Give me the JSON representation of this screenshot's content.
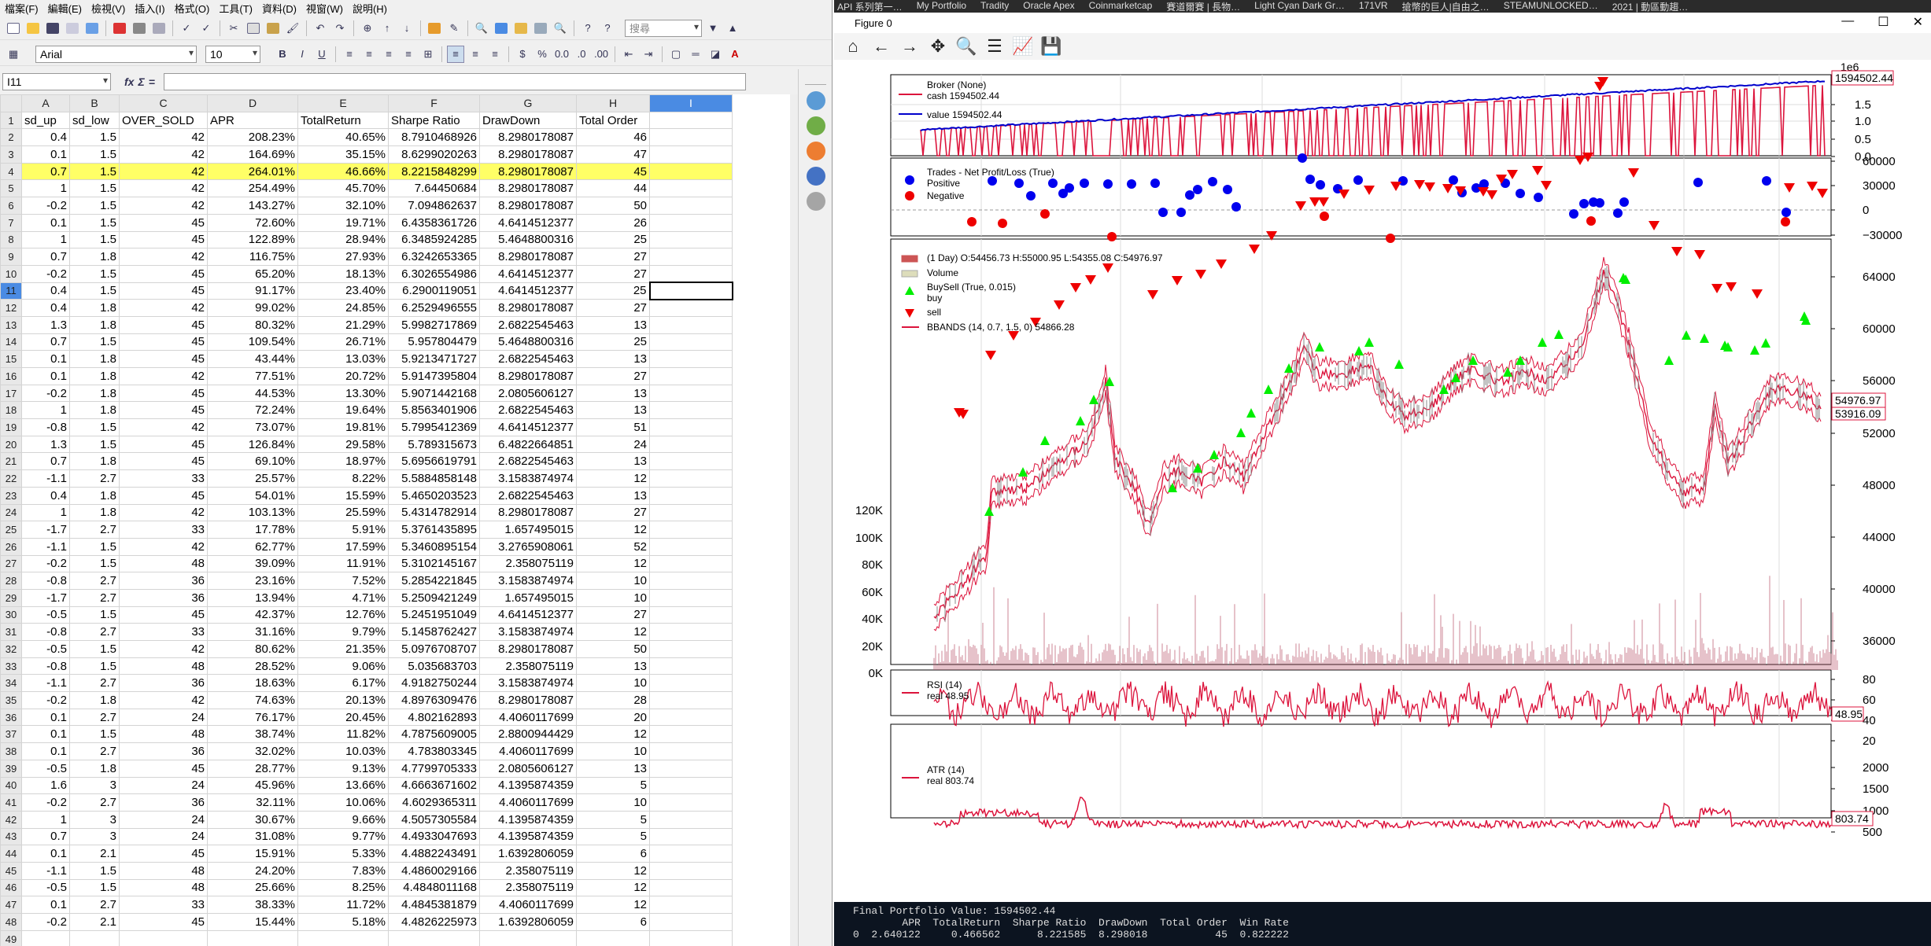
{
  "taskbar": {
    "items": [
      "API 系列第一…",
      "My Portfolio",
      "Tradity",
      "Oracle Apex",
      "Coinmarketcap",
      "賽道爾賽 | 長物…",
      "Light Cyan Dark Gr…",
      "171VR",
      "搶幣的巨人|自由之…",
      "STEAMUNLOCKED…",
      "2021 | 動區動趨…"
    ]
  },
  "spreadsheet": {
    "menu": [
      "檔案(F)",
      "編輯(E)",
      "檢視(V)",
      "插入(I)",
      "格式(O)",
      "工具(T)",
      "資料(D)",
      "視窗(W)",
      "說明(H)"
    ],
    "font_name": "Arial",
    "font_size": "10",
    "search_placeholder": "搜尋",
    "name_box": "I11",
    "formula_value": "",
    "bold": "B",
    "italic": "I",
    "underline": "U",
    "fx": "fx",
    "sigma": "Σ",
    "equals": "=",
    "columns": [
      "",
      "A",
      "B",
      "C",
      "D",
      "E",
      "F",
      "G",
      "H",
      "I"
    ],
    "header_row": [
      "sd_up",
      "sd_low",
      "OVER_SOLD",
      "APR",
      "TotalReturn",
      "Sharpe Ratio",
      "DrawDown",
      "Total Order"
    ],
    "rows": [
      [
        "0.4",
        "1.5",
        "42",
        "208.23%",
        "40.65%",
        "8.7910468926",
        "8.2980178087",
        "46"
      ],
      [
        "0.1",
        "1.5",
        "42",
        "164.69%",
        "35.15%",
        "8.6299020263",
        "8.2980178087",
        "47"
      ],
      [
        "0.7",
        "1.5",
        "42",
        "264.01%",
        "46.66%",
        "8.2215848299",
        "8.2980178087",
        "45"
      ],
      [
        "1",
        "1.5",
        "42",
        "254.49%",
        "45.70%",
        "7.64450684",
        "8.2980178087",
        "44"
      ],
      [
        "-0.2",
        "1.5",
        "42",
        "143.27%",
        "32.10%",
        "7.094862637",
        "8.2980178087",
        "50"
      ],
      [
        "0.1",
        "1.5",
        "45",
        "72.60%",
        "19.71%",
        "6.4358361726",
        "4.6414512377",
        "26"
      ],
      [
        "1",
        "1.5",
        "45",
        "122.89%",
        "28.94%",
        "6.3485924285",
        "5.4648800316",
        "25"
      ],
      [
        "0.7",
        "1.8",
        "42",
        "116.75%",
        "27.93%",
        "6.3242653365",
        "8.2980178087",
        "27"
      ],
      [
        "-0.2",
        "1.5",
        "45",
        "65.20%",
        "18.13%",
        "6.3026554986",
        "4.6414512377",
        "27"
      ],
      [
        "0.4",
        "1.5",
        "45",
        "91.17%",
        "23.40%",
        "6.2900119051",
        "4.6414512377",
        "25"
      ],
      [
        "0.4",
        "1.8",
        "42",
        "99.02%",
        "24.85%",
        "6.2529496555",
        "8.2980178087",
        "27"
      ],
      [
        "1.3",
        "1.8",
        "45",
        "80.32%",
        "21.29%",
        "5.9982717869",
        "2.6822545463",
        "13"
      ],
      [
        "0.7",
        "1.5",
        "45",
        "109.54%",
        "26.71%",
        "5.957804479",
        "5.4648800316",
        "25"
      ],
      [
        "0.1",
        "1.8",
        "45",
        "43.44%",
        "13.03%",
        "5.9213471727",
        "2.6822545463",
        "13"
      ],
      [
        "0.1",
        "1.8",
        "42",
        "77.51%",
        "20.72%",
        "5.9147395804",
        "8.2980178087",
        "27"
      ],
      [
        "-0.2",
        "1.8",
        "45",
        "44.53%",
        "13.30%",
        "5.9071442168",
        "2.0805606127",
        "13"
      ],
      [
        "1",
        "1.8",
        "45",
        "72.24%",
        "19.64%",
        "5.8563401906",
        "2.6822545463",
        "13"
      ],
      [
        "-0.8",
        "1.5",
        "42",
        "73.07%",
        "19.81%",
        "5.7995412369",
        "4.6414512377",
        "51"
      ],
      [
        "1.3",
        "1.5",
        "45",
        "126.84%",
        "29.58%",
        "5.789315673",
        "6.4822664851",
        "24"
      ],
      [
        "0.7",
        "1.8",
        "45",
        "69.10%",
        "18.97%",
        "5.6956619791",
        "2.6822545463",
        "13"
      ],
      [
        "-1.1",
        "2.7",
        "33",
        "25.57%",
        "8.22%",
        "5.5884858148",
        "3.1583874974",
        "12"
      ],
      [
        "0.4",
        "1.8",
        "45",
        "54.01%",
        "15.59%",
        "5.4650203523",
        "2.6822545463",
        "13"
      ],
      [
        "1",
        "1.8",
        "42",
        "103.13%",
        "25.59%",
        "5.4314782914",
        "8.2980178087",
        "27"
      ],
      [
        "-1.7",
        "2.7",
        "33",
        "17.78%",
        "5.91%",
        "5.3761435895",
        "1.657495015",
        "12"
      ],
      [
        "-1.1",
        "1.5",
        "42",
        "62.77%",
        "17.59%",
        "5.3460895154",
        "3.2765908061",
        "52"
      ],
      [
        "-0.2",
        "1.5",
        "48",
        "39.09%",
        "11.91%",
        "5.3102145167",
        "2.358075119",
        "12"
      ],
      [
        "-0.8",
        "2.7",
        "36",
        "23.16%",
        "7.52%",
        "5.2854221845",
        "3.1583874974",
        "10"
      ],
      [
        "-1.7",
        "2.7",
        "36",
        "13.94%",
        "4.71%",
        "5.2509421249",
        "1.657495015",
        "10"
      ],
      [
        "-0.5",
        "1.5",
        "45",
        "42.37%",
        "12.76%",
        "5.2451951049",
        "4.6414512377",
        "27"
      ],
      [
        "-0.8",
        "2.7",
        "33",
        "31.16%",
        "9.79%",
        "5.1458762427",
        "3.1583874974",
        "12"
      ],
      [
        "-0.5",
        "1.5",
        "42",
        "80.62%",
        "21.35%",
        "5.0976708707",
        "8.2980178087",
        "50"
      ],
      [
        "-0.8",
        "1.5",
        "48",
        "28.52%",
        "9.06%",
        "5.035683703",
        "2.358075119",
        "13"
      ],
      [
        "-1.1",
        "2.7",
        "36",
        "18.63%",
        "6.17%",
        "4.9182750244",
        "3.1583874974",
        "10"
      ],
      [
        "-0.2",
        "1.8",
        "42",
        "74.63%",
        "20.13%",
        "4.8976309476",
        "8.2980178087",
        "28"
      ],
      [
        "0.1",
        "2.7",
        "24",
        "76.17%",
        "20.45%",
        "4.802162893",
        "4.4060117699",
        "20"
      ],
      [
        "0.1",
        "1.5",
        "48",
        "38.74%",
        "11.82%",
        "4.7875609005",
        "2.8800944429",
        "12"
      ],
      [
        "0.1",
        "2.7",
        "36",
        "32.02%",
        "10.03%",
        "4.783803345",
        "4.4060117699",
        "10"
      ],
      [
        "-0.5",
        "1.8",
        "45",
        "28.77%",
        "9.13%",
        "4.7799705333",
        "2.0805606127",
        "13"
      ],
      [
        "1.6",
        "3",
        "24",
        "45.96%",
        "13.66%",
        "4.6663671602",
        "4.1395874359",
        "5"
      ],
      [
        "-0.2",
        "2.7",
        "36",
        "32.11%",
        "10.06%",
        "4.6029365311",
        "4.4060117699",
        "10"
      ],
      [
        "1",
        "3",
        "24",
        "30.67%",
        "9.66%",
        "4.5057305584",
        "4.1395874359",
        "5"
      ],
      [
        "0.7",
        "3",
        "24",
        "31.08%",
        "9.77%",
        "4.4933047693",
        "4.1395874359",
        "5"
      ],
      [
        "0.1",
        "2.1",
        "45",
        "15.91%",
        "5.33%",
        "4.4882243491",
        "1.6392806059",
        "6"
      ],
      [
        "-1.1",
        "1.5",
        "48",
        "24.20%",
        "7.83%",
        "4.4860029166",
        "2.358075119",
        "12"
      ],
      [
        "-0.5",
        "1.5",
        "48",
        "25.66%",
        "8.25%",
        "4.4848011168",
        "2.358075119",
        "12"
      ],
      [
        "0.1",
        "2.7",
        "33",
        "38.33%",
        "11.72%",
        "4.4845381879",
        "4.4060117699",
        "12"
      ],
      [
        "-0.2",
        "2.1",
        "45",
        "15.44%",
        "5.18%",
        "4.4826225973",
        "1.6392806059",
        "6"
      ],
      [
        "",
        "",
        "",
        "",
        "",
        "",
        "",
        "",
        ""
      ]
    ],
    "highlight_row": 4,
    "selected_row": 11
  },
  "figure": {
    "title": "Figure 0",
    "broker": {
      "label": "Broker (None)",
      "cash": "cash 1594502.44",
      "value": "value 1594502.44",
      "badge": "1594502.44",
      "scale": "1e6",
      "ticks": [
        "1.5",
        "1.0",
        "0.5",
        "0.0"
      ]
    },
    "trades": {
      "label": "Trades - Net Profit/Loss (True)",
      "positive": "Positive",
      "negative": "Negative",
      "ticks": [
        "60000",
        "30000",
        "0",
        "−30000"
      ]
    },
    "price": {
      "ohlc": "(1 Day) O:54456.73 H:55000.95 L:54355.08 C:54976.97",
      "volume": "Volume",
      "buysell": "BuySell (True, 0.015)",
      "buy": "buy",
      "sell": "sell",
      "bbands": "BBANDS (14, 0.7, 1.5, 0) 54866.28",
      "badge_close": "54976.97",
      "badge_bb": "53916.09",
      "ticks": [
        "64000",
        "60000",
        "56000",
        "52000",
        "48000",
        "44000",
        "40000",
        "36000"
      ],
      "vol_ticks": [
        "120K",
        "100K",
        "80K",
        "60K",
        "40K",
        "20K",
        "0K"
      ]
    },
    "rsi": {
      "label": "RSI (14)",
      "real": "real 48.95",
      "badge": "48.95",
      "ticks": [
        "80",
        "60",
        "40",
        "20"
      ]
    },
    "atr": {
      "label": "ATR (14)",
      "real": "real 803.74",
      "badge": "803.74",
      "ticks": [
        "2000",
        "1500",
        "1000",
        "500"
      ]
    },
    "colors": {
      "line": "#dc143c",
      "value": "#0000cc",
      "buy": "#00ee00",
      "sell": "#ee0000",
      "pos": "#0000ee",
      "neg": "#ee0000"
    }
  },
  "console": {
    "line1": "Final Portfolio Value: 1594502.44",
    "line2": "        APR  TotalReturn  Sharpe Ratio  DrawDown  Total Order  Win Rate",
    "line3": "0  2.640122     0.466562      8.221585  8.298018           45  0.822222"
  }
}
